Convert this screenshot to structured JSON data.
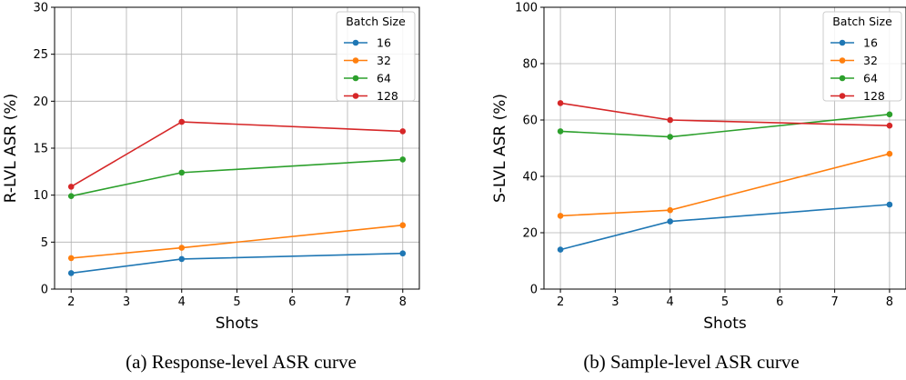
{
  "chart_data": [
    {
      "type": "line",
      "x": [
        2,
        4,
        8
      ],
      "xlabel": "Shots",
      "ylabel": "R-LVL ASR (%)",
      "xlim": [
        1.7,
        8.3
      ],
      "ylim": [
        0,
        30
      ],
      "xticks": [
        "2",
        "3",
        "4",
        "5",
        "6",
        "7",
        "8"
      ],
      "yticks": [
        "0",
        "5",
        "10",
        "15",
        "20",
        "25",
        "30"
      ],
      "grid": true,
      "legend": {
        "title": "Batch Size",
        "placement": "top-right"
      },
      "series": [
        {
          "name": "16",
          "color": "#1f77b4",
          "values": [
            1.7,
            3.2,
            3.8
          ]
        },
        {
          "name": "32",
          "color": "#ff7f0e",
          "values": [
            3.3,
            4.4,
            6.8
          ]
        },
        {
          "name": "64",
          "color": "#2ca02c",
          "values": [
            9.9,
            12.4,
            13.8
          ]
        },
        {
          "name": "128",
          "color": "#d62728",
          "values": [
            10.9,
            17.8,
            16.8
          ]
        }
      ],
      "caption": "(a) Response-level ASR curve"
    },
    {
      "type": "line",
      "x": [
        2,
        4,
        8
      ],
      "xlabel": "Shots",
      "ylabel": "S-LVL ASR (%)",
      "xlim": [
        1.7,
        8.3
      ],
      "ylim": [
        0,
        100
      ],
      "xticks": [
        "2",
        "3",
        "4",
        "5",
        "6",
        "7",
        "8"
      ],
      "yticks": [
        "0",
        "20",
        "40",
        "60",
        "80",
        "100"
      ],
      "grid": true,
      "legend": {
        "title": "Batch Size",
        "placement": "top-right"
      },
      "series": [
        {
          "name": "16",
          "color": "#1f77b4",
          "values": [
            14,
            24,
            30
          ]
        },
        {
          "name": "32",
          "color": "#ff7f0e",
          "values": [
            26,
            28,
            48
          ]
        },
        {
          "name": "64",
          "color": "#2ca02c",
          "values": [
            56,
            54,
            62
          ]
        },
        {
          "name": "128",
          "color": "#d62728",
          "values": [
            66,
            60,
            58
          ]
        }
      ],
      "caption": "(b) Sample-level ASR curve"
    }
  ]
}
